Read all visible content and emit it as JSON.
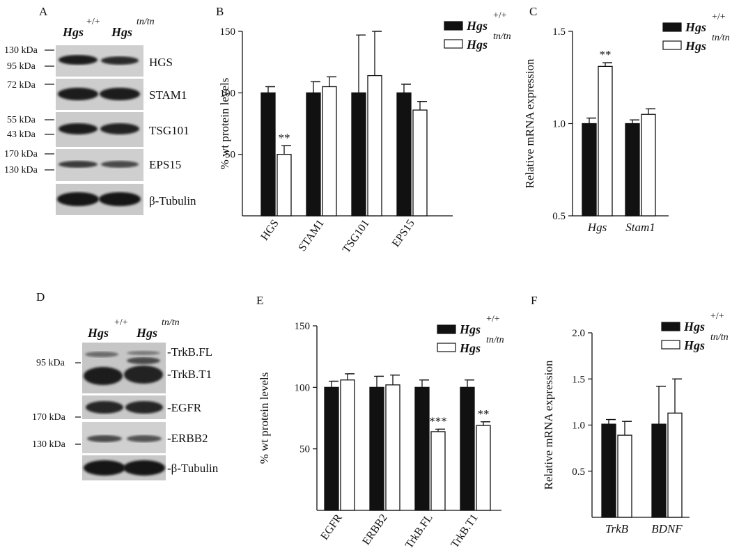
{
  "panels": {
    "A": {
      "letter": "A",
      "genotype_wt": "Hgs",
      "genotype_wt_sup": "+/+",
      "genotype_mut": "Hgs",
      "genotype_mut_sup": "tn/tn",
      "markers": [
        "130 kDa",
        "95 kDa",
        "72 kDa",
        "55 kDa",
        "43 kDa",
        "170 kDa",
        "130 kDa"
      ],
      "proteins": [
        "HGS",
        "STAM1",
        "TSG101",
        "EPS15",
        "β-Tubulin"
      ]
    },
    "D": {
      "letter": "D",
      "genotype_wt": "Hgs",
      "genotype_wt_sup": "+/+",
      "genotype_mut": "Hgs",
      "genotype_mut_sup": "tn/tn",
      "markers": [
        "95 kDa",
        "170 kDa",
        "130 kDa"
      ],
      "proteins": [
        "-TrkB.FL",
        "-TrkB.T1",
        "-EGFR",
        "-ERBB2",
        "-β-Tubulin"
      ]
    },
    "B": {
      "letter": "B"
    },
    "C": {
      "letter": "C"
    },
    "E": {
      "letter": "E"
    },
    "F": {
      "letter": "F"
    }
  },
  "legend": {
    "wt_label": "Hgs",
    "wt_sup": "+/+",
    "mut_label": "Hgs",
    "mut_sup": "tn/tn",
    "wt_color": "#111111",
    "mut_color": "#ffffff"
  },
  "chart_data": [
    {
      "panel": "B",
      "type": "bar",
      "ylabel": "% wt protein levels",
      "ylim": [
        0,
        150
      ],
      "yticks": [
        "50",
        "100",
        "150"
      ],
      "categories": [
        "HGS",
        "STAM1",
        "TSG101",
        "EPS15"
      ],
      "category_style": "rotated",
      "series": [
        {
          "name": "Hgs +/+",
          "values": [
            100,
            100,
            100,
            100
          ],
          "errors": [
            5,
            9,
            47,
            7
          ]
        },
        {
          "name": "Hgs tn/tn",
          "values": [
            50,
            105,
            114,
            86
          ],
          "errors": [
            7,
            8,
            36,
            7
          ]
        }
      ],
      "annotations": [
        {
          "category": 0,
          "series": 1,
          "text": "**"
        }
      ],
      "legend_position": "top-right"
    },
    {
      "panel": "C",
      "type": "bar",
      "ylabel": "Relative mRNA expression",
      "ylim": [
        0.5,
        1.5
      ],
      "yticks": [
        "0.5",
        "1.0",
        "1.5"
      ],
      "categories": [
        "Hgs",
        "Stam1"
      ],
      "category_style": "italic",
      "series": [
        {
          "name": "Hgs +/+",
          "values": [
            1.0,
            1.0
          ],
          "errors": [
            0.03,
            0.02
          ]
        },
        {
          "name": "Hgs tn/tn",
          "values": [
            1.31,
            1.05
          ],
          "errors": [
            0.02,
            0.03
          ]
        }
      ],
      "annotations": [
        {
          "category": 0,
          "series": 1,
          "text": "**"
        }
      ],
      "legend_position": "top-right"
    },
    {
      "panel": "E",
      "type": "bar",
      "ylabel": "% wt protein levels",
      "ylim": [
        0,
        150
      ],
      "yticks": [
        "50",
        "100",
        "150"
      ],
      "categories": [
        "EGFR",
        "ERBB2",
        "TrkB.FL",
        "TrkB.T1"
      ],
      "category_style": "rotated",
      "series": [
        {
          "name": "Hgs +/+",
          "values": [
            100,
            100,
            100,
            100
          ],
          "errors": [
            5,
            9,
            6,
            6
          ]
        },
        {
          "name": "Hgs tn/tn",
          "values": [
            106,
            102,
            64,
            69
          ],
          "errors": [
            5,
            8,
            2,
            3
          ]
        }
      ],
      "annotations": [
        {
          "category": 2,
          "series": 1,
          "text": "***"
        },
        {
          "category": 3,
          "series": 1,
          "text": "**"
        }
      ],
      "legend_position": "top-right"
    },
    {
      "panel": "F",
      "type": "bar",
      "ylabel": "Relative mRNA expression",
      "ylim": [
        0,
        2.0
      ],
      "yticks": [
        "0.5",
        "1.0",
        "1.5",
        "2.0"
      ],
      "categories": [
        "TrkB",
        "BDNF"
      ],
      "category_style": "italic",
      "series": [
        {
          "name": "Hgs +/+",
          "values": [
            1.01,
            1.01
          ],
          "errors": [
            0.05,
            0.41
          ]
        },
        {
          "name": "Hgs tn/tn",
          "values": [
            0.89,
            1.13
          ],
          "errors": [
            0.15,
            0.37
          ]
        }
      ],
      "annotations": [],
      "legend_position": "top-right"
    }
  ]
}
